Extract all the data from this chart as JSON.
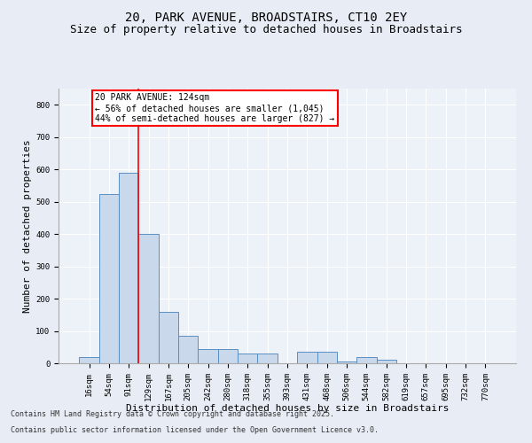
{
  "title1": "20, PARK AVENUE, BROADSTAIRS, CT10 2EY",
  "title2": "Size of property relative to detached houses in Broadstairs",
  "xlabel": "Distribution of detached houses by size in Broadstairs",
  "ylabel": "Number of detached properties",
  "categories": [
    "16sqm",
    "54sqm",
    "91sqm",
    "129sqm",
    "167sqm",
    "205sqm",
    "242sqm",
    "280sqm",
    "318sqm",
    "355sqm",
    "393sqm",
    "431sqm",
    "468sqm",
    "506sqm",
    "544sqm",
    "582sqm",
    "619sqm",
    "657sqm",
    "695sqm",
    "732sqm",
    "770sqm"
  ],
  "values": [
    20,
    525,
    590,
    400,
    160,
    85,
    45,
    45,
    30,
    30,
    0,
    35,
    35,
    5,
    20,
    10,
    0,
    0,
    0,
    0,
    0
  ],
  "bar_color": "#c9d9eb",
  "bar_edge_color": "#5a8fc3",
  "vline_color": "red",
  "vline_x_index": 2.5,
  "annotation_text": "20 PARK AVENUE: 124sqm\n← 56% of detached houses are smaller (1,045)\n44% of semi-detached houses are larger (827) →",
  "annotation_box_color": "white",
  "annotation_box_edge_color": "red",
  "ylim": [
    0,
    850
  ],
  "yticks": [
    0,
    100,
    200,
    300,
    400,
    500,
    600,
    700,
    800
  ],
  "bg_color": "#e8edf5",
  "plot_bg_color": "#edf1f8",
  "footer1": "Contains HM Land Registry data © Crown copyright and database right 2025.",
  "footer2": "Contains public sector information licensed under the Open Government Licence v3.0.",
  "title_fontsize": 10,
  "title2_fontsize": 9,
  "axis_label_fontsize": 8,
  "tick_fontsize": 6.5,
  "annotation_fontsize": 7,
  "footer_fontsize": 6
}
